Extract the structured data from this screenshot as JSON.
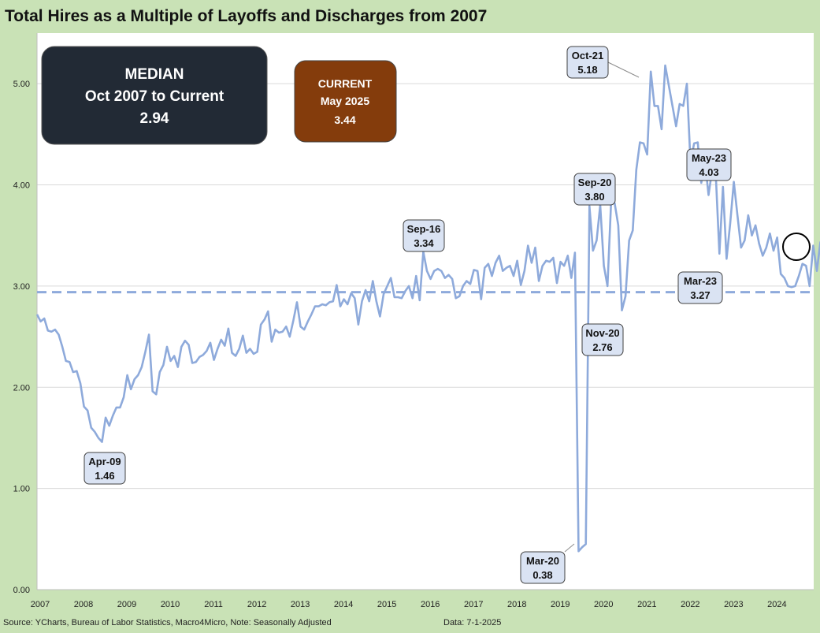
{
  "title": "Total Hires as a Multiple of Layoffs and Discharges from 2007",
  "footer": {
    "source": "Source: YCharts, Bureau of Labor Statistics, Macro4Micro, Note: Seasonally Adjusted",
    "date": "Data: 7-1-2025"
  },
  "median_box": {
    "line1": "MEDIAN",
    "line2": "Oct 2007 to Current",
    "line3": "2.94"
  },
  "current_box": {
    "line1": "CURRENT",
    "line2": "May 2025",
    "line3": "3.44"
  },
  "colors": {
    "background": "#c9e2b6",
    "plot": "#ffffff",
    "line": "#8eaadb",
    "median_box": "#222a35",
    "current_box": "#843c0c",
    "callout_fill": "#dae3f3"
  },
  "chart_data": {
    "type": "line",
    "title": "Total Hires as a Multiple of Layoffs and Discharges from 2007",
    "x_ticks": [
      "2007",
      "2008",
      "2009",
      "2010",
      "2011",
      "2012",
      "2013",
      "2014",
      "2015",
      "2016",
      "2017",
      "2018",
      "2019",
      "2020",
      "2021",
      "2022",
      "2023",
      "2024"
    ],
    "y_ticks": [
      "0.00",
      "1.00",
      "2.00",
      "3.00",
      "4.00",
      "5.00"
    ],
    "ylim": [
      0,
      5.5
    ],
    "xlim": [
      2007.0,
      2024.92
    ],
    "grid": true,
    "median": 2.94,
    "series": [
      {
        "x_start": 2007.0,
        "step": 0.0833,
        "values": [
          2.72,
          2.65,
          2.68,
          2.56,
          2.55,
          2.57,
          2.52,
          2.4,
          2.26,
          2.25,
          2.15,
          2.16,
          2.04,
          1.81,
          1.77,
          1.6,
          1.56,
          1.5,
          1.46,
          1.7,
          1.62,
          1.72,
          1.8,
          1.8,
          1.9,
          2.12,
          1.98,
          2.08,
          2.12,
          2.2,
          2.35,
          2.52,
          1.96,
          1.93,
          2.15,
          2.22,
          2.4,
          2.26,
          2.31,
          2.2,
          2.4,
          2.46,
          2.42,
          2.24,
          2.25,
          2.3,
          2.32,
          2.36,
          2.44,
          2.27,
          2.38,
          2.47,
          2.41,
          2.58,
          2.34,
          2.31,
          2.38,
          2.51,
          2.34,
          2.38,
          2.33,
          2.35,
          2.62,
          2.67,
          2.75,
          2.45,
          2.57,
          2.54,
          2.55,
          2.6,
          2.5,
          2.66,
          2.84,
          2.6,
          2.57,
          2.65,
          2.72,
          2.8,
          2.8,
          2.82,
          2.81,
          2.84,
          2.85,
          3.01,
          2.8,
          2.87,
          2.82,
          2.93,
          2.88,
          2.62,
          2.85,
          2.96,
          2.85,
          3.05,
          2.85,
          2.7,
          2.92,
          3.0,
          3.08,
          2.89,
          2.89,
          2.88,
          2.95,
          3.0,
          2.88,
          3.1,
          2.86,
          3.34,
          3.15,
          3.07,
          3.15,
          3.17,
          3.15,
          3.08,
          3.11,
          3.07,
          2.88,
          2.9,
          3.0,
          3.05,
          3.02,
          3.16,
          3.15,
          2.87,
          3.18,
          3.22,
          3.1,
          3.23,
          3.3,
          3.15,
          3.18,
          3.2,
          3.1,
          3.25,
          3.01,
          3.15,
          3.4,
          3.23,
          3.38,
          3.05,
          3.2,
          3.25,
          3.24,
          3.28,
          3.03,
          3.24,
          3.2,
          3.3,
          3.08,
          3.33,
          0.38,
          0.42,
          0.45,
          3.79,
          3.35,
          3.45,
          3.8,
          3.2,
          3.0,
          3.83,
          3.82,
          3.6,
          2.76,
          2.9,
          3.45,
          3.55,
          4.15,
          4.42,
          4.41,
          4.3,
          5.12,
          4.78,
          4.78,
          4.55,
          5.18,
          4.98,
          4.78,
          4.58,
          4.8,
          4.78,
          5.0,
          4.22,
          4.41,
          4.42,
          4.02,
          4.24,
          3.9,
          4.15,
          4.1,
          3.32,
          3.98,
          3.27,
          3.62,
          4.03,
          3.7,
          3.38,
          3.45,
          3.7,
          3.5,
          3.6,
          3.42,
          3.3,
          3.38,
          3.52,
          3.35,
          3.48,
          3.12,
          3.08,
          3.0,
          2.99,
          3.0,
          3.1,
          3.22,
          3.2,
          3.0,
          3.4,
          3.15,
          3.44
        ]
      }
    ],
    "callouts": [
      {
        "label": "Apr-09",
        "value": "1.46"
      },
      {
        "label": "Sep-16",
        "value": "3.34"
      },
      {
        "label": "Mar-20",
        "value": "0.38"
      },
      {
        "label": "Sep-20",
        "value": "3.80"
      },
      {
        "label": "Nov-20",
        "value": "2.76"
      },
      {
        "label": "Oct-21",
        "value": "5.18"
      },
      {
        "label": "May-23",
        "value": "4.03"
      },
      {
        "label": "Mar-23",
        "value": "3.27"
      }
    ]
  }
}
